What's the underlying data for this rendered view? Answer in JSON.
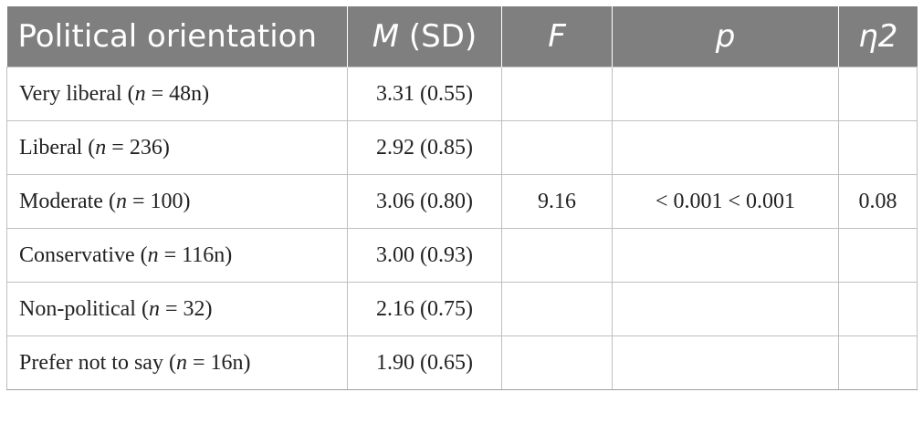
{
  "table": {
    "headers": [
      {
        "pre": "Political orientation",
        "italic": "",
        "post": ""
      },
      {
        "pre": "",
        "italic": "M",
        "post": " (SD)"
      },
      {
        "pre": "",
        "italic": "F",
        "post": ""
      },
      {
        "pre": "",
        "italic": "p",
        "post": ""
      },
      {
        "pre": "",
        "italic": "η2",
        "post": ""
      }
    ],
    "rows": [
      {
        "label": "Very liberal (",
        "n_symbol": "n",
        "n_value": " = 48n)",
        "msd": "3.31 (0.55)",
        "f": "",
        "p": "",
        "eta": ""
      },
      {
        "label": "Liberal (",
        "n_symbol": "n",
        "n_value": " = 236)",
        "msd": "2.92 (0.85)",
        "f": "",
        "p": "",
        "eta": ""
      },
      {
        "label": "Moderate (",
        "n_symbol": "n",
        "n_value": " = 100)",
        "msd": "3.06 (0.80)",
        "f": "9.16",
        "p": "< 0.001 < 0.001",
        "eta": "0.08"
      },
      {
        "label": "Conservative (",
        "n_symbol": "n",
        "n_value": " = 116n)",
        "msd": "3.00 (0.93)",
        "f": "",
        "p": "",
        "eta": ""
      },
      {
        "label": "Non-political (",
        "n_symbol": "n",
        "n_value": " = 32)",
        "msd": "2.16 (0.75)",
        "f": "",
        "p": "",
        "eta": ""
      },
      {
        "label": "Prefer not to say (",
        "n_symbol": "n",
        "n_value": " = 16n)",
        "msd": "1.90 (0.65)",
        "f": "",
        "p": "",
        "eta": ""
      }
    ]
  },
  "colors": {
    "header_bg": "#7f7f7f",
    "header_text": "#ffffff",
    "grid": "#bfbfbf",
    "body_text": "#222222"
  }
}
